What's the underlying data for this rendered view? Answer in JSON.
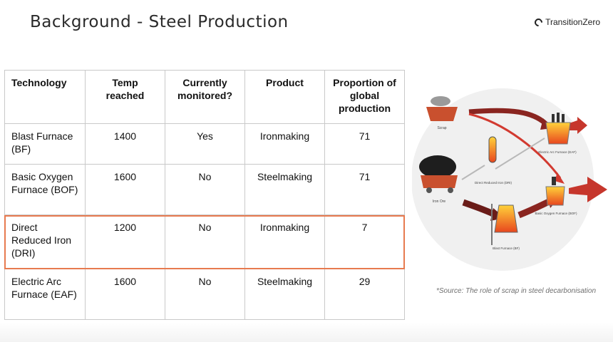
{
  "slide": {
    "title": "Background - Steel Production",
    "brand": "TransitionZero"
  },
  "table": {
    "headers": [
      "Technology",
      "Temp reached",
      "Currently monitored?",
      "Product",
      "Proportion of global production"
    ],
    "rows": [
      {
        "technology": "Blast Furnace (BF)",
        "temp": "1400",
        "monitored": "Yes",
        "product": "Ironmaking",
        "proportion": "71"
      },
      {
        "technology": "Basic Oxygen Furnace (BOF)",
        "temp": "1600",
        "monitored": "No",
        "product": "Steelmaking",
        "proportion": "71"
      },
      {
        "technology": "Direct Reduced Iron (DRI)",
        "temp": "1200",
        "monitored": "No",
        "product": "Ironmaking",
        "proportion": "7"
      },
      {
        "technology": "Electric Arc Furnace (EAF)",
        "temp": "1600",
        "monitored": "No",
        "product": "Steelmaking",
        "proportion": "29"
      }
    ],
    "highlight_color": "#e77a4f"
  },
  "diagram": {
    "labels": {
      "scrap": "Scrap",
      "iron_ore": "Iron Ore",
      "dri": "Direct Reduced Iron (DRI)",
      "bf": "Blast Furnace (BF)",
      "eaf": "Electric Arc Furnace (EAF)",
      "bof": "Basic Oxygen Furnace (BOF)"
    },
    "colors": {
      "arrow_red": "#c6362c",
      "furnace_orange": "#f28a1e",
      "circle_bg": "#f0f0f0"
    }
  },
  "source": "*Source: The role of scrap in steel decarbonisation"
}
